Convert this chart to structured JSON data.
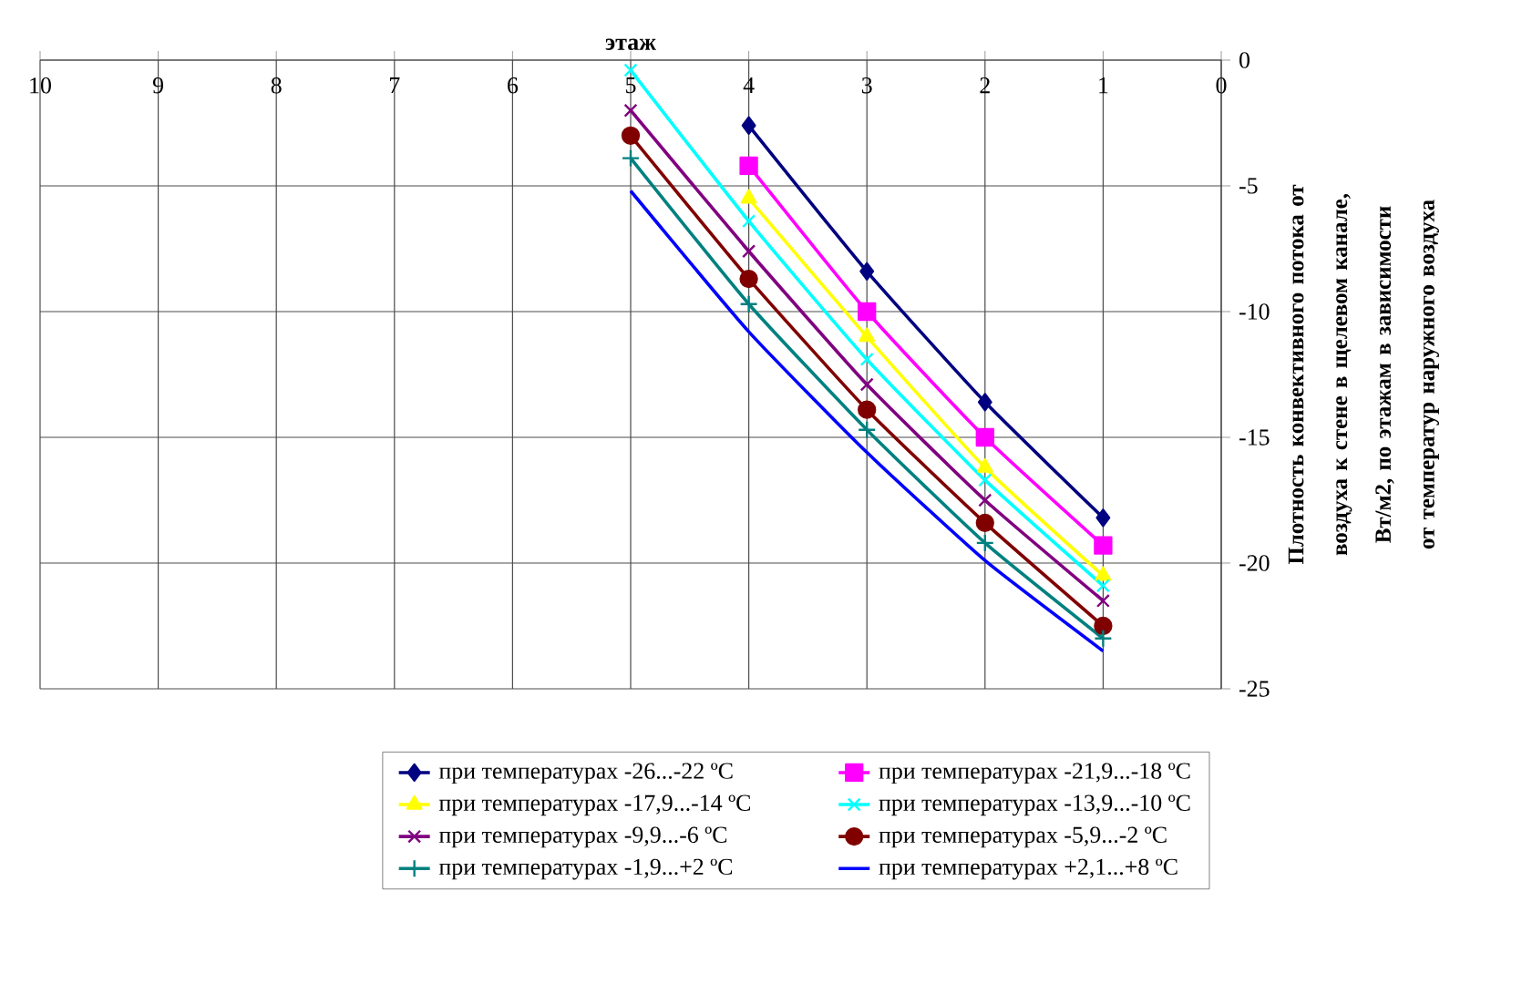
{
  "chart_data": {
    "type": "line",
    "xlabel": "этаж",
    "ylabel": "Плотность конвективного потока от воздуха к стене в щелевом канале, Вт/м2, по этажам в зависимости от температур наружного воздуха",
    "xlim": [
      10,
      0
    ],
    "xticks": [
      10,
      9,
      8,
      7,
      6,
      5,
      4,
      3,
      2,
      1,
      0
    ],
    "ylim": [
      -25,
      0
    ],
    "yticks": [
      0,
      -5,
      -10,
      -15,
      -20,
      -25
    ],
    "grid": true,
    "legend": "bottom",
    "line_style": "solid",
    "series": [
      {
        "name": "при температурах -26...-22 ºC",
        "color": "#000080",
        "marker": "diamond",
        "x": [
          4,
          3,
          2,
          1
        ],
        "values": [
          -2.6,
          -8.4,
          -13.6,
          -18.2
        ]
      },
      {
        "name": "при температурах -21,9...-18 ºC",
        "color": "#ff00ff",
        "marker": "square",
        "x": [
          4,
          3,
          2,
          1
        ],
        "values": [
          -4.2,
          -10.0,
          -15.0,
          -19.3
        ]
      },
      {
        "name": "при температурах -17,9...-14 ºC",
        "color": "#ffff00",
        "marker": "triangle",
        "x": [
          4,
          3,
          2,
          1
        ],
        "values": [
          -5.5,
          -11.0,
          -16.2,
          -20.5
        ]
      },
      {
        "name": "при температурах -13,9...-10 ºC",
        "color": "#00ffff",
        "marker": "cross",
        "x": [
          5,
          4,
          3,
          2,
          1
        ],
        "values": [
          -0.4,
          -6.4,
          -11.9,
          -16.7,
          -20.9
        ]
      },
      {
        "name": "при температурах -9,9...-6 ºC",
        "color": "#800080",
        "marker": "cross",
        "x": [
          5,
          4,
          3,
          2,
          1
        ],
        "values": [
          -2.0,
          -7.6,
          -12.9,
          -17.5,
          -21.5
        ]
      },
      {
        "name": "при температурах -5,9...-2 ºC",
        "color": "#800000",
        "marker": "circle",
        "x": [
          5,
          4,
          3,
          2,
          1
        ],
        "values": [
          -3.0,
          -8.7,
          -13.9,
          -18.4,
          -22.5
        ]
      },
      {
        "name": "при температурах -1,9...+2 ºC",
        "color": "#008080",
        "marker": "plus",
        "x": [
          5,
          4,
          3,
          2,
          1
        ],
        "values": [
          -3.9,
          -9.7,
          -14.7,
          -19.2,
          -23.0
        ]
      },
      {
        "name": "при температурах +2,1...+8 ºC",
        "color": "#0000ff",
        "marker": "none",
        "x": [
          5,
          4,
          3,
          2,
          1
        ],
        "values": [
          -5.2,
          -10.8,
          -15.6,
          -19.9,
          -23.5
        ]
      }
    ]
  }
}
